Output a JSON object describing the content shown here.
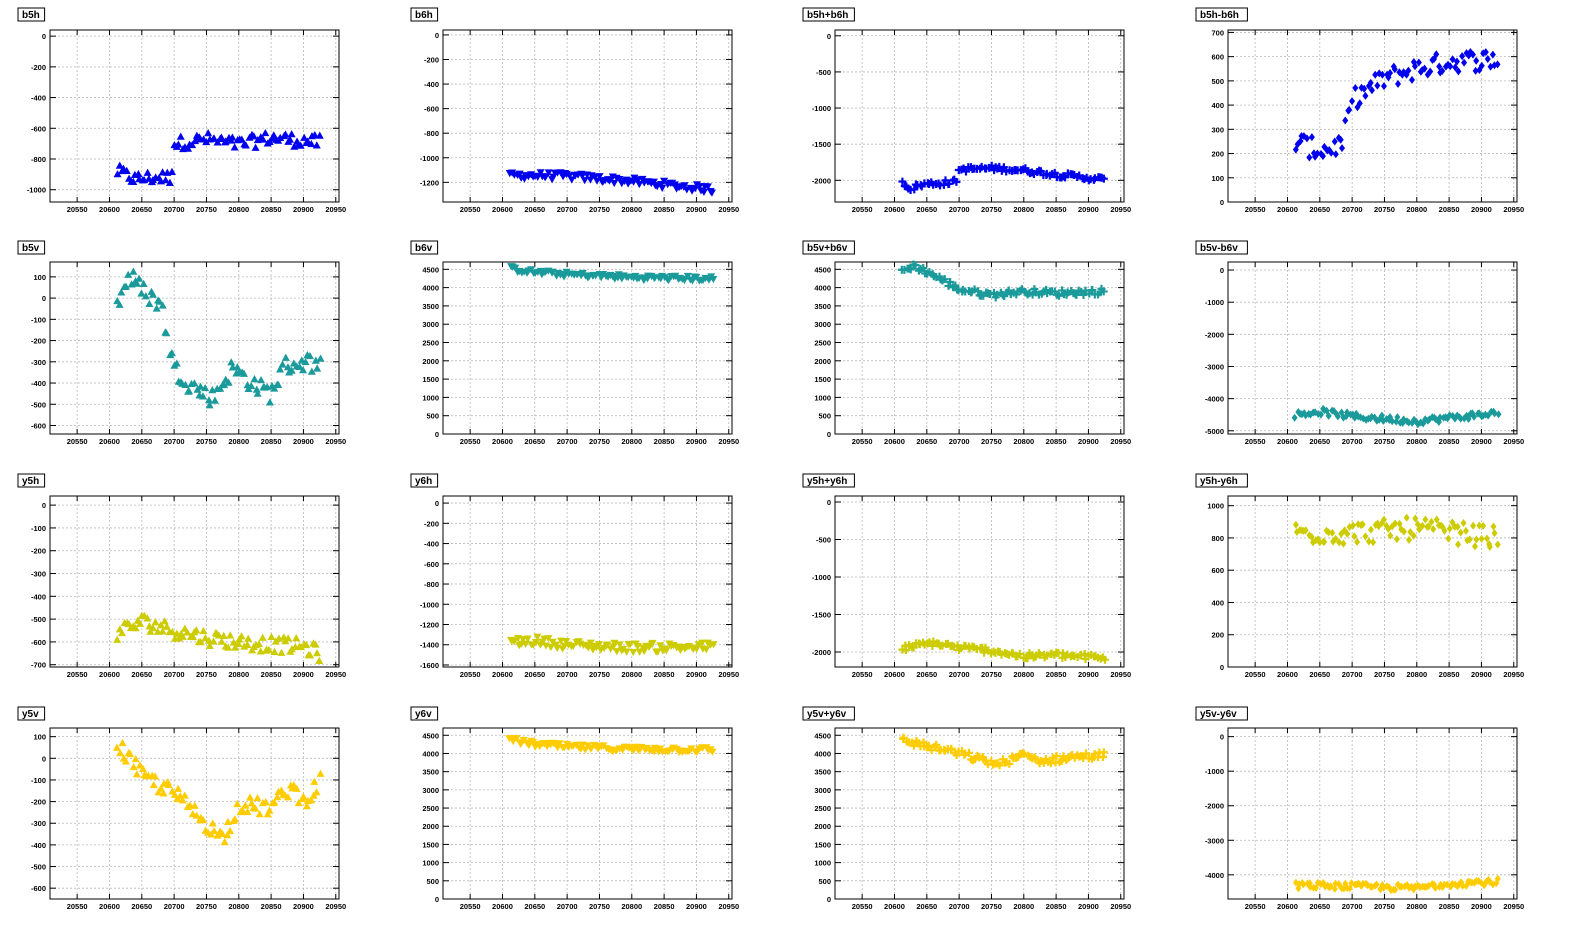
{
  "colors": {
    "blue": "#0000ee",
    "teal": "#1a9a9a",
    "olive": "#cccc00",
    "gold": "#ffcc00",
    "grid": "#b8b8b8"
  },
  "x_ticks": [
    20550,
    20600,
    20650,
    20700,
    20750,
    20800,
    20850,
    20900,
    20950
  ],
  "chart_data": [
    {
      "name": "b5h",
      "type": "scatter",
      "color": "#0000ee",
      "marker": "triangle-up",
      "xlim": [
        20508,
        20955
      ],
      "ylim": [
        -1080,
        40
      ],
      "yticks": [
        0,
        -200,
        -400,
        -600,
        -800,
        -1000
      ],
      "x_range": [
        20612,
        20925
      ],
      "trend": [
        [
          20612,
          -880
        ],
        [
          20640,
          -930
        ],
        [
          20665,
          -920
        ],
        [
          20695,
          -920
        ],
        [
          20700,
          -700
        ],
        [
          20750,
          -670
        ],
        [
          20800,
          -705
        ],
        [
          20850,
          -660
        ],
        [
          20925,
          -690
        ]
      ],
      "spread": 45
    },
    {
      "name": "b6h",
      "type": "scatter",
      "color": "#0000ee",
      "marker": "triangle-down",
      "xlim": [
        20508,
        20955
      ],
      "ylim": [
        -1360,
        40
      ],
      "yticks": [
        0,
        -200,
        -400,
        -600,
        -800,
        -1000,
        -1200
      ],
      "x_range": [
        20612,
        20925
      ],
      "trend": [
        [
          20612,
          -1140
        ],
        [
          20700,
          -1150
        ],
        [
          20800,
          -1190
        ],
        [
          20925,
          -1260
        ]
      ],
      "spread": 30
    },
    {
      "name": "b5h+b6h",
      "type": "scatter",
      "color": "#0000ee",
      "marker": "plus",
      "xlim": [
        20508,
        20955
      ],
      "ylim": [
        -2300,
        80
      ],
      "yticks": [
        0,
        -500,
        -1000,
        -1500,
        -2000
      ],
      "x_range": [
        20612,
        20925
      ],
      "trend": [
        [
          20612,
          -2020
        ],
        [
          20625,
          -2120
        ],
        [
          20640,
          -2060
        ],
        [
          20695,
          -2020
        ],
        [
          20700,
          -1850
        ],
        [
          20750,
          -1830
        ],
        [
          20800,
          -1860
        ],
        [
          20850,
          -1920
        ],
        [
          20925,
          -1990
        ]
      ],
      "spread": 35
    },
    {
      "name": "b5h-b6h",
      "type": "scatter",
      "color": "#0000ee",
      "marker": "diamond",
      "xlim": [
        20508,
        20955
      ],
      "ylim": [
        0,
        710
      ],
      "yticks": [
        0,
        100,
        200,
        300,
        400,
        500,
        600,
        700
      ],
      "x_range": [
        20612,
        20925
      ],
      "trend": [
        [
          20612,
          250
        ],
        [
          20650,
          210
        ],
        [
          20685,
          240
        ],
        [
          20700,
          420
        ],
        [
          20750,
          510
        ],
        [
          20800,
          550
        ],
        [
          20850,
          580
        ],
        [
          20925,
          590
        ]
      ],
      "spread": 45
    },
    {
      "name": "b5v",
      "type": "scatter",
      "color": "#1a9a9a",
      "marker": "triangle-up",
      "xlim": [
        20508,
        20955
      ],
      "ylim": [
        -640,
        170
      ],
      "yticks": [
        100,
        0,
        -100,
        -200,
        -300,
        -400,
        -500,
        -600
      ],
      "x_range": [
        20612,
        20925
      ],
      "trend": [
        [
          20612,
          -30
        ],
        [
          20630,
          110
        ],
        [
          20650,
          40
        ],
        [
          20680,
          -30
        ],
        [
          20700,
          -330
        ],
        [
          20730,
          -420
        ],
        [
          20760,
          -470
        ],
        [
          20790,
          -330
        ],
        [
          20830,
          -420
        ],
        [
          20850,
          -450
        ],
        [
          20870,
          -320
        ],
        [
          20900,
          -300
        ],
        [
          20925,
          -310
        ]
      ],
      "spread": 45
    },
    {
      "name": "b6v",
      "type": "scatter",
      "color": "#1a9a9a",
      "marker": "triangle-down",
      "xlim": [
        20508,
        20955
      ],
      "ylim": [
        0,
        4700
      ],
      "yticks": [
        0,
        500,
        1000,
        1500,
        2000,
        2500,
        3000,
        3500,
        4000,
        4500
      ],
      "x_range": [
        20612,
        20925
      ],
      "trend": [
        [
          20612,
          4520
        ],
        [
          20650,
          4420
        ],
        [
          20700,
          4360
        ],
        [
          20800,
          4280
        ],
        [
          20925,
          4240
        ]
      ],
      "spread": 70
    },
    {
      "name": "b5v+b6v",
      "type": "scatter",
      "color": "#1a9a9a",
      "marker": "plus",
      "xlim": [
        20508,
        20955
      ],
      "ylim": [
        0,
        4700
      ],
      "yticks": [
        0,
        500,
        1000,
        1500,
        2000,
        2500,
        3000,
        3500,
        4000,
        4500
      ],
      "x_range": [
        20612,
        20925
      ],
      "trend": [
        [
          20612,
          4450
        ],
        [
          20630,
          4600
        ],
        [
          20660,
          4350
        ],
        [
          20700,
          3950
        ],
        [
          20750,
          3800
        ],
        [
          20800,
          3900
        ],
        [
          20850,
          3850
        ],
        [
          20925,
          3900
        ]
      ],
      "spread": 80
    },
    {
      "name": "b5v-b6v",
      "type": "scatter",
      "color": "#1a9a9a",
      "marker": "diamond",
      "xlim": [
        20508,
        20955
      ],
      "ylim": [
        -5100,
        250
      ],
      "yticks": [
        0,
        -1000,
        -2000,
        -3000,
        -4000,
        -5000
      ],
      "x_range": [
        20612,
        20925
      ],
      "trend": [
        [
          20612,
          -4500
        ],
        [
          20650,
          -4400
        ],
        [
          20700,
          -4550
        ],
        [
          20800,
          -4700
        ],
        [
          20850,
          -4600
        ],
        [
          20925,
          -4450
        ]
      ],
      "spread": 100
    },
    {
      "name": "y5h",
      "type": "scatter",
      "color": "#cccc00",
      "marker": "triangle-up",
      "xlim": [
        20508,
        20955
      ],
      "ylim": [
        -710,
        40
      ],
      "yticks": [
        0,
        -100,
        -200,
        -300,
        -400,
        -500,
        -600,
        -700
      ],
      "x_range": [
        20612,
        20925
      ],
      "trend": [
        [
          20612,
          -560
        ],
        [
          20650,
          -510
        ],
        [
          20700,
          -550
        ],
        [
          20750,
          -580
        ],
        [
          20800,
          -600
        ],
        [
          20850,
          -610
        ],
        [
          20900,
          -620
        ],
        [
          20925,
          -650
        ]
      ],
      "spread": 35
    },
    {
      "name": "y6h",
      "type": "scatter",
      "color": "#cccc00",
      "marker": "triangle-down",
      "xlim": [
        20508,
        20955
      ],
      "ylim": [
        -1620,
        70
      ],
      "yticks": [
        0,
        -200,
        -400,
        -600,
        -800,
        -1000,
        -1200,
        -1400,
        -1600
      ],
      "x_range": [
        20612,
        20925
      ],
      "trend": [
        [
          20612,
          -1380
        ],
        [
          20650,
          -1360
        ],
        [
          20700,
          -1400
        ],
        [
          20800,
          -1430
        ],
        [
          20925,
          -1420
        ]
      ],
      "spread": 45
    },
    {
      "name": "y5h+y6h",
      "type": "scatter",
      "color": "#cccc00",
      "marker": "plus",
      "xlim": [
        20508,
        20955
      ],
      "ylim": [
        -2200,
        80
      ],
      "yticks": [
        0,
        -500,
        -1000,
        -1500,
        -2000
      ],
      "x_range": [
        20612,
        20925
      ],
      "trend": [
        [
          20612,
          -1950
        ],
        [
          20660,
          -1880
        ],
        [
          20700,
          -1940
        ],
        [
          20750,
          -1980
        ],
        [
          20800,
          -2060
        ],
        [
          20850,
          -2040
        ],
        [
          20925,
          -2080
        ]
      ],
      "spread": 40
    },
    {
      "name": "y5h-y6h",
      "type": "scatter",
      "color": "#cccc00",
      "marker": "diamond",
      "xlim": [
        20508,
        20955
      ],
      "ylim": [
        0,
        1060
      ],
      "yticks": [
        0,
        200,
        400,
        600,
        800,
        1000
      ],
      "x_range": [
        20612,
        20925
      ],
      "trend": [
        [
          20612,
          830
        ],
        [
          20700,
          830
        ],
        [
          20800,
          860
        ],
        [
          20925,
          800
        ]
      ],
      "spread": 70
    },
    {
      "name": "y5v",
      "type": "scatter",
      "color": "#ffcc00",
      "marker": "triangle-up",
      "xlim": [
        20508,
        20955
      ],
      "ylim": [
        -650,
        140
      ],
      "yticks": [
        100,
        0,
        -100,
        -200,
        -300,
        -400,
        -500,
        -600
      ],
      "x_range": [
        20612,
        20925
      ],
      "trend": [
        [
          20612,
          70
        ],
        [
          20650,
          -80
        ],
        [
          20700,
          -160
        ],
        [
          20750,
          -300
        ],
        [
          20775,
          -370
        ],
        [
          20800,
          -210
        ],
        [
          20850,
          -230
        ],
        [
          20880,
          -130
        ],
        [
          20900,
          -200
        ],
        [
          20925,
          -110
        ]
      ],
      "spread": 40
    },
    {
      "name": "y6v",
      "type": "scatter",
      "color": "#ffcc00",
      "marker": "triangle-down",
      "xlim": [
        20508,
        20955
      ],
      "ylim": [
        0,
        4700
      ],
      "yticks": [
        0,
        500,
        1000,
        1500,
        2000,
        2500,
        3000,
        3500,
        4000,
        4500
      ],
      "x_range": [
        20612,
        20925
      ],
      "trend": [
        [
          20612,
          4380
        ],
        [
          20650,
          4250
        ],
        [
          20700,
          4180
        ],
        [
          20800,
          4120
        ],
        [
          20925,
          4100
        ]
      ],
      "spread": 80
    },
    {
      "name": "y5v+y6v",
      "type": "scatter",
      "color": "#ffcc00",
      "marker": "plus",
      "xlim": [
        20508,
        20955
      ],
      "ylim": [
        0,
        4700
      ],
      "yticks": [
        0,
        500,
        1000,
        1500,
        2000,
        2500,
        3000,
        3500,
        4000,
        4500
      ],
      "x_range": [
        20612,
        20925
      ],
      "trend": [
        [
          20612,
          4380
        ],
        [
          20650,
          4200
        ],
        [
          20700,
          4000
        ],
        [
          20760,
          3700
        ],
        [
          20800,
          3950
        ],
        [
          20830,
          3780
        ],
        [
          20870,
          3900
        ],
        [
          20925,
          3950
        ]
      ],
      "spread": 100
    },
    {
      "name": "y5v-y6v",
      "type": "scatter",
      "color": "#ffcc00",
      "marker": "diamond",
      "xlim": [
        20508,
        20955
      ],
      "ylim": [
        -4700,
        250
      ],
      "yticks": [
        0,
        -1000,
        -2000,
        -3000,
        -4000
      ],
      "x_range": [
        20612,
        20925
      ],
      "trend": [
        [
          20612,
          -4300
        ],
        [
          20700,
          -4330
        ],
        [
          20800,
          -4380
        ],
        [
          20850,
          -4250
        ],
        [
          20925,
          -4200
        ]
      ],
      "spread": 90
    }
  ]
}
